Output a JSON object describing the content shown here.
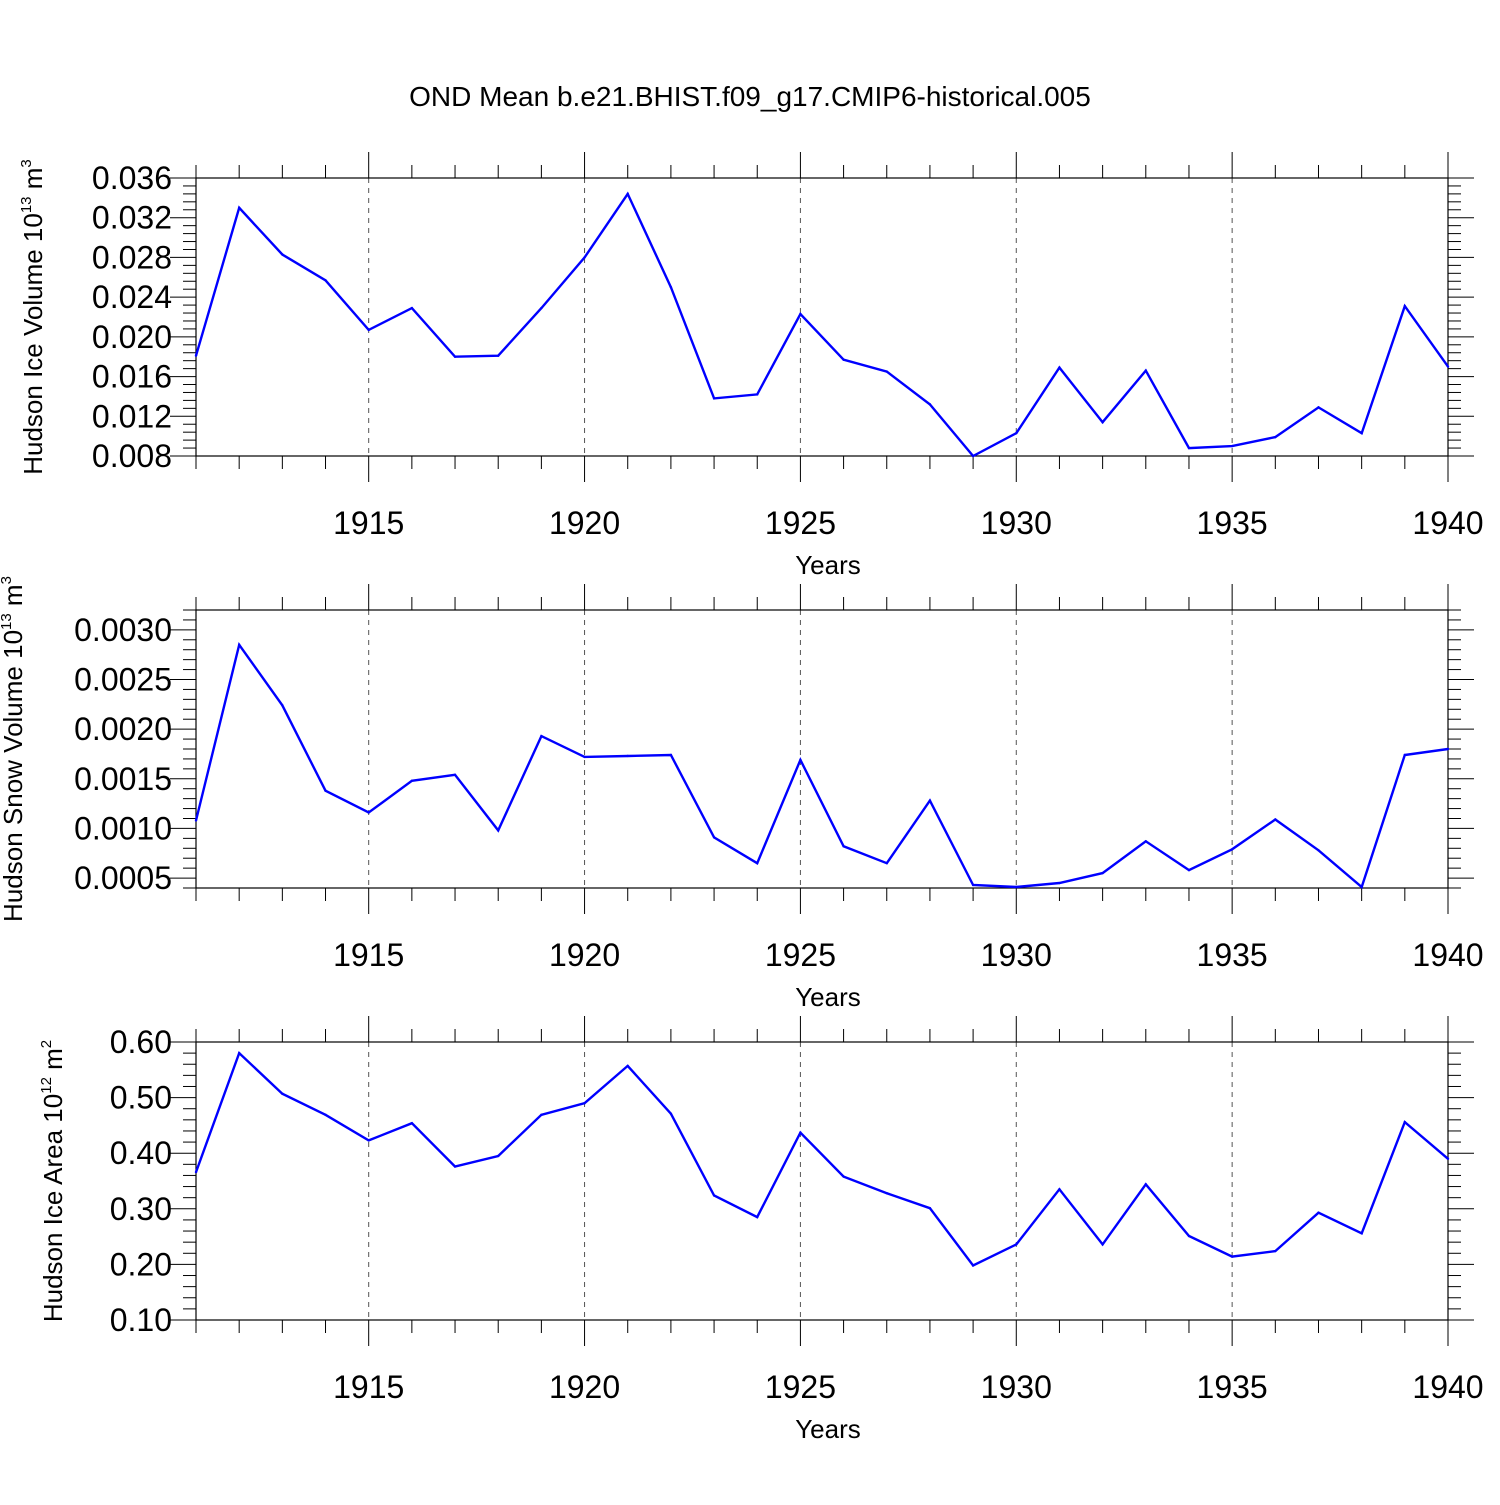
{
  "title": "OND Mean b.e21.BHIST.f09_g17.CMIP6-historical.005",
  "colors": {
    "line": "#0000ff",
    "axis": "#000000",
    "grid": "#555555"
  },
  "chart_data": [
    {
      "type": "line",
      "xlabel": "Years",
      "ylabel": {
        "main": "Hudson Ice Volume 10",
        "exponent": "13",
        "unit": " m",
        "unit_exponent": "3"
      },
      "xlim": [
        1911,
        1940
      ],
      "ylim": [
        0.008,
        0.036
      ],
      "x_ticks": [
        "1915",
        "1920",
        "1925",
        "1930",
        "1935",
        "1940"
      ],
      "y_ticks": [
        "0.008",
        "0.012",
        "0.016",
        "0.020",
        "0.024",
        "0.028",
        "0.032",
        "0.036"
      ],
      "grid_x": "dashed at major x ticks",
      "x": [
        1911,
        1912,
        1913,
        1914,
        1915,
        1916,
        1917,
        1918,
        1919,
        1920,
        1921,
        1922,
        1923,
        1924,
        1925,
        1926,
        1927,
        1928,
        1929,
        1930,
        1931,
        1932,
        1933,
        1934,
        1935,
        1936,
        1937,
        1938,
        1939,
        1940
      ],
      "values": [
        0.0181,
        0.033,
        0.0283,
        0.0257,
        0.0207,
        0.0229,
        0.018,
        0.0181,
        0.0229,
        0.028,
        0.0344,
        0.025,
        0.0138,
        0.0142,
        0.0223,
        0.0177,
        0.0165,
        0.0132,
        0.008,
        0.0103,
        0.0169,
        0.0114,
        0.0166,
        0.0088,
        0.009,
        0.0099,
        0.0129,
        0.0103,
        0.0231,
        0.017
      ]
    },
    {
      "type": "line",
      "xlabel": "Years",
      "ylabel": {
        "main": "Hudson Snow Volume 10",
        "exponent": "13",
        "unit": " m",
        "unit_exponent": "3"
      },
      "xlim": [
        1911,
        1940
      ],
      "ylim": [
        0.0004,
        0.0032
      ],
      "x_ticks": [
        "1915",
        "1920",
        "1925",
        "1930",
        "1935",
        "1940"
      ],
      "y_ticks": [
        "0.0005",
        "0.0010",
        "0.0015",
        "0.0020",
        "0.0025",
        "0.0030"
      ],
      "y_tick_values": [
        0.0005,
        0.001,
        0.0015,
        0.002,
        0.0025,
        0.003
      ],
      "grid_x": "dashed at major x ticks",
      "x": [
        1911,
        1912,
        1913,
        1914,
        1915,
        1916,
        1917,
        1918,
        1919,
        1920,
        1921,
        1922,
        1923,
        1924,
        1925,
        1926,
        1927,
        1928,
        1929,
        1930,
        1931,
        1932,
        1933,
        1934,
        1935,
        1936,
        1937,
        1938,
        1939,
        1940
      ],
      "values": [
        0.00108,
        0.00285,
        0.00224,
        0.00138,
        0.00116,
        0.00148,
        0.00154,
        0.00098,
        0.00193,
        0.00172,
        0.00173,
        0.00174,
        0.00091,
        0.00065,
        0.00169,
        0.00082,
        0.00065,
        0.00128,
        0.00043,
        0.00041,
        0.00045,
        0.00055,
        0.00087,
        0.00058,
        0.00079,
        0.00109,
        0.00078,
        0.00041,
        0.00174,
        0.0018
      ]
    },
    {
      "type": "line",
      "xlabel": "Years",
      "ylabel": {
        "main": "Hudson Ice Area 10",
        "exponent": "12",
        "unit": " m",
        "unit_exponent": "2"
      },
      "xlim": [
        1911,
        1940
      ],
      "ylim": [
        0.1,
        0.6
      ],
      "x_ticks": [
        "1915",
        "1920",
        "1925",
        "1930",
        "1935",
        "1940"
      ],
      "y_ticks": [
        "0.10",
        "0.20",
        "0.30",
        "0.40",
        "0.50",
        "0.60"
      ],
      "grid_x": "dashed at major x ticks",
      "x": [
        1911,
        1912,
        1913,
        1914,
        1915,
        1916,
        1917,
        1918,
        1919,
        1920,
        1921,
        1922,
        1923,
        1924,
        1925,
        1926,
        1927,
        1928,
        1929,
        1930,
        1931,
        1932,
        1933,
        1934,
        1935,
        1936,
        1937,
        1938,
        1939,
        1940
      ],
      "values": [
        0.366,
        0.58,
        0.507,
        0.469,
        0.423,
        0.454,
        0.376,
        0.395,
        0.469,
        0.49,
        0.557,
        0.471,
        0.324,
        0.285,
        0.437,
        0.358,
        0.328,
        0.301,
        0.198,
        0.236,
        0.335,
        0.236,
        0.344,
        0.251,
        0.214,
        0.224,
        0.293,
        0.256,
        0.456,
        0.39
      ]
    }
  ]
}
